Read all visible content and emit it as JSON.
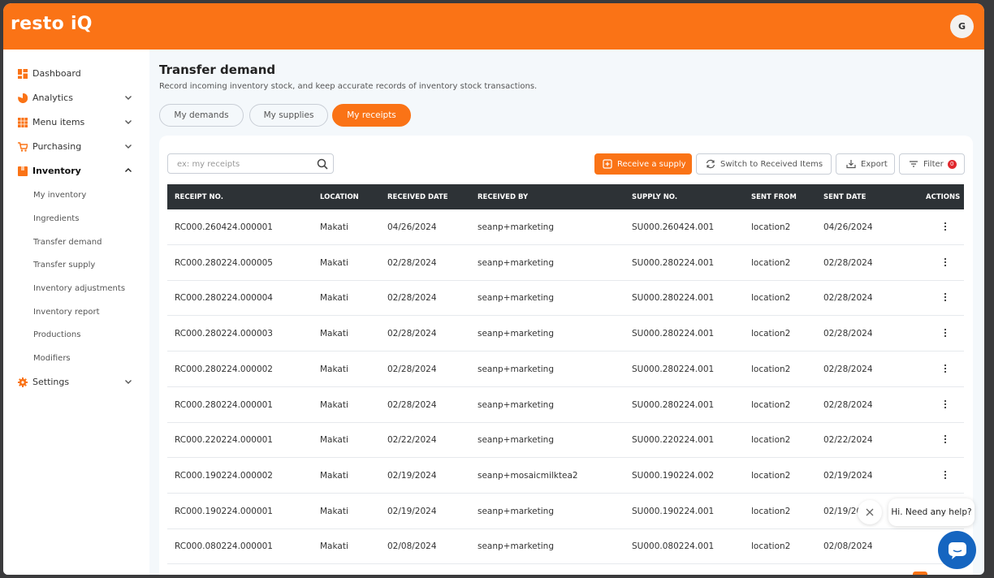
{
  "app": {
    "logo": "resto iQ",
    "avatar_initial": "G",
    "accent": "#fa7316"
  },
  "sidebar": {
    "items": [
      {
        "label": "Dashboard",
        "icon": "dashboard-icon"
      },
      {
        "label": "Analytics",
        "icon": "pie-chart-icon"
      },
      {
        "label": "Menu items",
        "icon": "menu-grid-icon"
      },
      {
        "label": "Purchasing",
        "icon": "cart-icon"
      },
      {
        "label": "Inventory",
        "icon": "box-icon"
      },
      {
        "label": "Settings",
        "icon": "gear-icon"
      }
    ],
    "inventory_sub": [
      "My inventory",
      "Ingredients",
      "Transfer demand",
      "Transfer supply",
      "Inventory adjustments",
      "Inventory report",
      "Productions",
      "Modifiers"
    ]
  },
  "page": {
    "title": "Transfer demand",
    "subtitle": "Record incoming inventory stock, and keep accurate records of inventory stock transactions."
  },
  "tabs": [
    "My demands",
    "My supplies",
    "My receipts"
  ],
  "toolbar": {
    "search_placeholder": "ex: my receipts",
    "receive": "Receive a supply",
    "switch": "Switch to Received Items",
    "export": "Export",
    "filter": "Filter",
    "filter_count": "0"
  },
  "table": {
    "headers": [
      "RECEIPT NO.",
      "LOCATION",
      "RECEIVED DATE",
      "RECEIVED BY",
      "SUPPLY NO.",
      "SENT FROM",
      "SENT DATE",
      "ACTIONS"
    ],
    "rows": [
      [
        "RC000.260424.000001",
        "Makati",
        "04/26/2024",
        "seanp+marketing",
        "SU000.260424.001",
        "location2",
        "04/26/2024"
      ],
      [
        "RC000.280224.000005",
        "Makati",
        "02/28/2024",
        "seanp+marketing",
        "SU000.280224.001",
        "location2",
        "02/28/2024"
      ],
      [
        "RC000.280224.000004",
        "Makati",
        "02/28/2024",
        "seanp+marketing",
        "SU000.280224.001",
        "location2",
        "02/28/2024"
      ],
      [
        "RC000.280224.000003",
        "Makati",
        "02/28/2024",
        "seanp+marketing",
        "SU000.280224.001",
        "location2",
        "02/28/2024"
      ],
      [
        "RC000.280224.000002",
        "Makati",
        "02/28/2024",
        "seanp+marketing",
        "SU000.280224.001",
        "location2",
        "02/28/2024"
      ],
      [
        "RC000.280224.000001",
        "Makati",
        "02/28/2024",
        "seanp+marketing",
        "SU000.280224.001",
        "location2",
        "02/28/2024"
      ],
      [
        "RC000.220224.000001",
        "Makati",
        "02/22/2024",
        "seanp+marketing",
        "SU000.220224.001",
        "location2",
        "02/22/2024"
      ],
      [
        "RC000.190224.000002",
        "Makati",
        "02/19/2024",
        "seanp+mosaicmilktea2",
        "SU000.190224.002",
        "location2",
        "02/19/2024"
      ],
      [
        "RC000.190224.000001",
        "Makati",
        "02/19/2024",
        "seanp+marketing",
        "SU000.190224.001",
        "location2",
        "02/19/20"
      ],
      [
        "RC000.080224.000001",
        "Makati",
        "02/08/2024",
        "seanp+marketing",
        "SU000.080224.001",
        "location2",
        "02/08/2024"
      ]
    ]
  },
  "chat": {
    "prompt": "Hi. Need any help?"
  }
}
